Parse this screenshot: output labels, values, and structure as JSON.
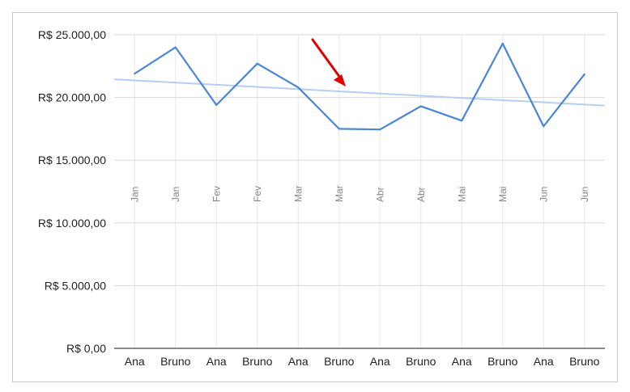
{
  "chart_data": {
    "type": "line",
    "title": "",
    "xlabel": "",
    "ylabel": "",
    "ylim": [
      0,
      25000
    ],
    "y_ticks": [
      "R$ 0,00",
      "R$ 5.000,00",
      "R$ 10.000,00",
      "R$ 15.000,00",
      "R$ 20.000,00",
      "R$ 25.000,00"
    ],
    "y_tick_values": [
      0,
      5000,
      10000,
      15000,
      20000,
      25000
    ],
    "categories": [
      "Ana",
      "Bruno",
      "Ana",
      "Bruno",
      "Ana",
      "Bruno",
      "Ana",
      "Bruno",
      "Ana",
      "Bruno",
      "Ana",
      "Bruno"
    ],
    "month_labels": [
      "Jan",
      "Jan",
      "Fev",
      "Fev",
      "Mar",
      "Mar",
      "Abr",
      "Abr",
      "Mai",
      "Mai",
      "Jun",
      "Jun"
    ],
    "series": [
      {
        "values": [
          21900,
          24000,
          19400,
          22700,
          20800,
          17500,
          17450,
          19300,
          18150,
          24300,
          17700,
          21850
        ],
        "color": "#4a86d8"
      }
    ],
    "trendline": {
      "values": [
        21450,
        19350
      ],
      "color": "#b4cef2"
    },
    "grid": true,
    "annotation": {
      "type": "arrow",
      "color": "#e00000"
    }
  }
}
